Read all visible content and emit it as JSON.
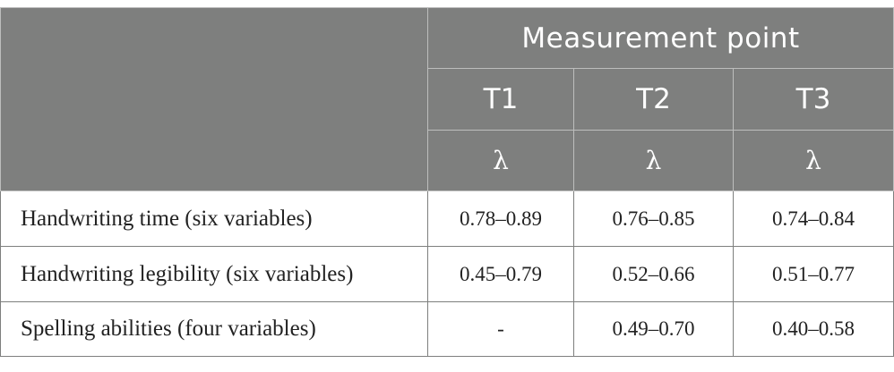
{
  "header": {
    "group_label": "Measurement point",
    "columns": [
      "T1",
      "T2",
      "T3"
    ],
    "stat_symbols": [
      "λ",
      "λ",
      "λ"
    ]
  },
  "rows": [
    {
      "label": "Handwriting time (six variables)",
      "values": [
        "0.78–0.89",
        "0.76–0.85",
        "0.74–0.84"
      ]
    },
    {
      "label": "Handwriting legibility (six variables)",
      "values": [
        "0.45–0.79",
        "0.52–0.66",
        "0.51–0.77"
      ]
    },
    {
      "label": "Spelling abilities (four variables)",
      "values": [
        "-",
        "0.49–0.70",
        "0.40–0.58"
      ]
    }
  ],
  "colors": {
    "header_background": "#7e7f7e",
    "header_text": "#ffffff",
    "header_divider": "#bdbebd",
    "body_text": "#222222",
    "body_border": "#7e7f7e"
  }
}
